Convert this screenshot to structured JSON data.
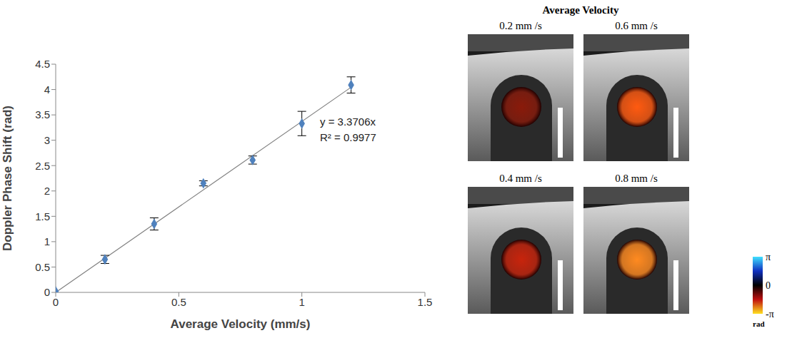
{
  "chart_data": {
    "type": "scatter",
    "x_label": "Average Velocity (mm/s)",
    "y_label": "Doppler Phase Shift (rad)",
    "x": [
      0,
      0.2,
      0.4,
      0.6,
      0.8,
      1,
      1.2
    ],
    "values": [
      0.02,
      0.65,
      1.35,
      2.15,
      2.61,
      3.33,
      4.09
    ],
    "errors": [
      0,
      0.08,
      0.12,
      0.05,
      0.08,
      0.24,
      0.16
    ],
    "color": "#4f81bd",
    "marker": "diamond",
    "xlim": [
      0,
      1.5
    ],
    "xticks": [
      0,
      0.5,
      1,
      1.5
    ],
    "ylim": [
      0,
      4.5
    ],
    "yticks": [
      0,
      0.5,
      1,
      1.5,
      2,
      2.5,
      3,
      3.5,
      4,
      4.5
    ],
    "grid": false,
    "fit": {
      "slope": 3.3706,
      "color": "#808080",
      "label": "y = 3.3706x",
      "r2_label": "R² = 0.9977"
    }
  },
  "panels": {
    "title": "Average Velocity",
    "labels": [
      "0.2 mm /s",
      "0.6 mm /s",
      "0.4 mm /s",
      "0.8 mm /s"
    ],
    "colors": [
      "#8a1a0a",
      "#ff5a10",
      "#c8240c",
      "#ff8a20"
    ],
    "colorbar": {
      "range": [
        -3.1416,
        3.1416
      ],
      "ticks": [
        {
          "value": 3.1416,
          "label": "π"
        },
        {
          "value": 0,
          "label": "0"
        },
        {
          "value": -3.1416,
          "label": "-π"
        }
      ],
      "unit": "rad"
    }
  }
}
